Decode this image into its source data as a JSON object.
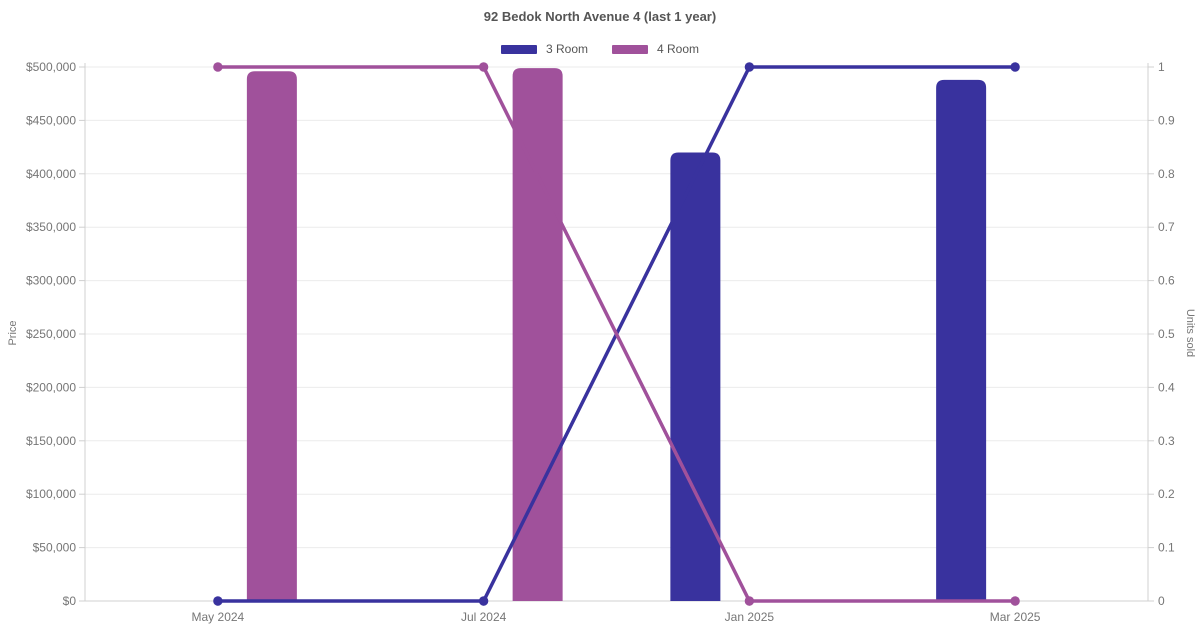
{
  "page": {
    "background": "#ffffff"
  },
  "chart_data": {
    "type": "bar",
    "combo": "grouped bars (price, left axis) + lines with point markers (units sold, right axis)",
    "title": "92 Bedok North Avenue 4 (last 1 year)",
    "categories": [
      "May 2024",
      "Jul 2024",
      "Jan 2025",
      "Mar 2025"
    ],
    "series": [
      {
        "name": "3 Room",
        "color": "#39329E",
        "price": [
          null,
          null,
          420000,
          488000
        ],
        "units_sold": [
          0,
          0,
          1,
          1
        ]
      },
      {
        "name": "4 Room",
        "color": "#A0519B",
        "price": [
          496000,
          499000,
          null,
          null
        ],
        "units_sold": [
          1,
          1,
          0,
          0
        ]
      }
    ],
    "axes": {
      "y": {
        "label": "Price",
        "min": 0,
        "max": 500000,
        "tick_step": 50000,
        "tick_labels": [
          "$0",
          "$50,000",
          "$100,000",
          "$150,000",
          "$200,000",
          "$250,000",
          "$300,000",
          "$350,000",
          "$400,000",
          "$450,000",
          "$500,000"
        ]
      },
      "y2": {
        "label": "Units sold",
        "min": 0,
        "max": 1,
        "tick_step": 0.1,
        "tick_labels": [
          "0",
          "0.1",
          "0.2",
          "0.3",
          "0.4",
          "0.5",
          "0.6",
          "0.7",
          "0.8",
          "0.9",
          "1"
        ]
      }
    },
    "legend": {
      "position": "top"
    },
    "grid": {
      "horizontal": true,
      "vertical": false
    },
    "colors": {
      "grid": "#EBEBEB",
      "axis": "#D0D0D0",
      "tick_text": "#767676",
      "title_text": "#555555"
    }
  }
}
